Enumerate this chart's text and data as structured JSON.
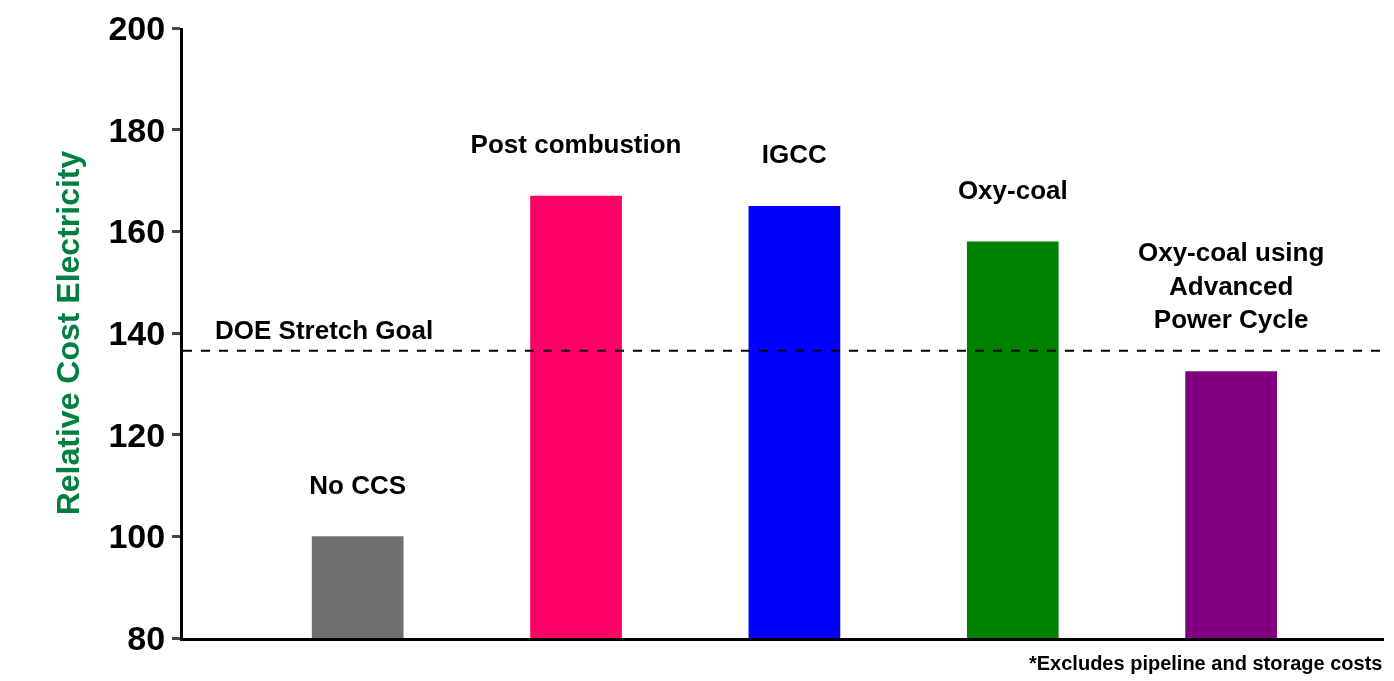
{
  "chart_data": {
    "type": "bar",
    "ylabel": "Relative Cost Electricity",
    "categories": [
      "No CCS",
      "Post combustion",
      "IGCC",
      "Oxy-coal",
      "Oxy-coal using\nAdvanced\nPower Cycle"
    ],
    "values": [
      100,
      167,
      165,
      158,
      132.5
    ],
    "colors": [
      "#707070",
      "#ff0066",
      "#0000ff",
      "#008000",
      "#800080"
    ],
    "ylim": [
      80,
      200
    ],
    "yticks": [
      80,
      100,
      120,
      140,
      160,
      180,
      200
    ],
    "grid": false,
    "tick_labels": "y",
    "ref_lines": [
      {
        "axis": "y",
        "value": 136.5,
        "label": "DOE Stretch Goal",
        "color": "#000000",
        "line_style": "dashed"
      }
    ],
    "annotations": [
      "*Excludes pipeline and storage costs"
    ]
  }
}
